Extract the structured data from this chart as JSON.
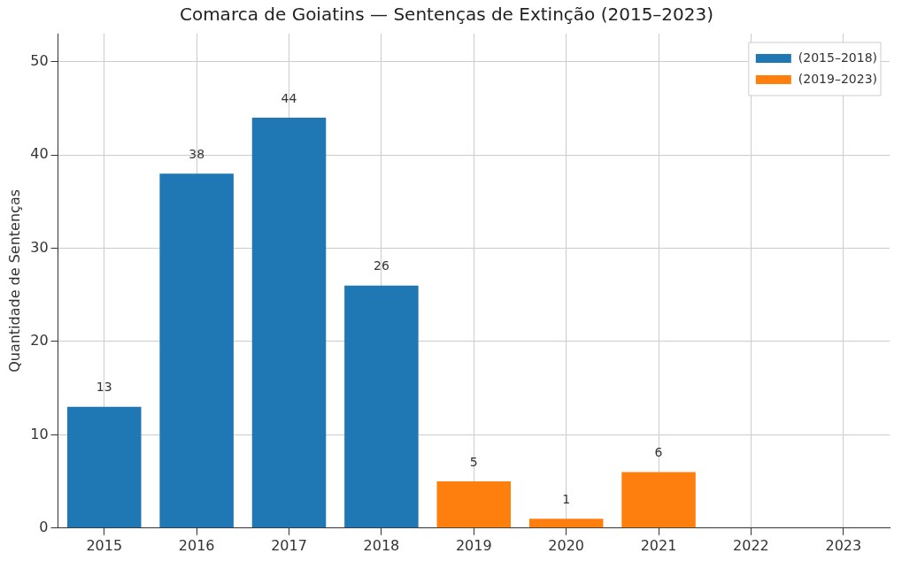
{
  "chart_data": {
    "type": "bar",
    "title": "Comarca de Goiatins — Sentenças de Extinção (2015–2023)",
    "ylabel": "Quantidade de Sentenças",
    "categories": [
      "2015",
      "2016",
      "2017",
      "2018",
      "2019",
      "2020",
      "2021",
      "2022",
      "2023"
    ],
    "series": [
      {
        "name": "(2015–2018)",
        "color": "#1f77b4",
        "values": [
          13,
          38,
          44,
          26,
          null,
          null,
          null,
          null,
          null
        ],
        "value_labels": [
          "13",
          "38",
          "44",
          "26",
          null,
          null,
          null,
          null,
          null
        ]
      },
      {
        "name": "(2019–2023)",
        "color": "#ff7f0e",
        "values": [
          null,
          null,
          null,
          null,
          5,
          1,
          6,
          0,
          0
        ],
        "value_labels": [
          null,
          null,
          null,
          null,
          "5",
          "1",
          "6",
          null,
          null
        ]
      }
    ],
    "ylim": [
      0,
      53
    ],
    "yticks": [
      0,
      10,
      20,
      30,
      40,
      50
    ],
    "grid": true,
    "legend": "top right"
  }
}
